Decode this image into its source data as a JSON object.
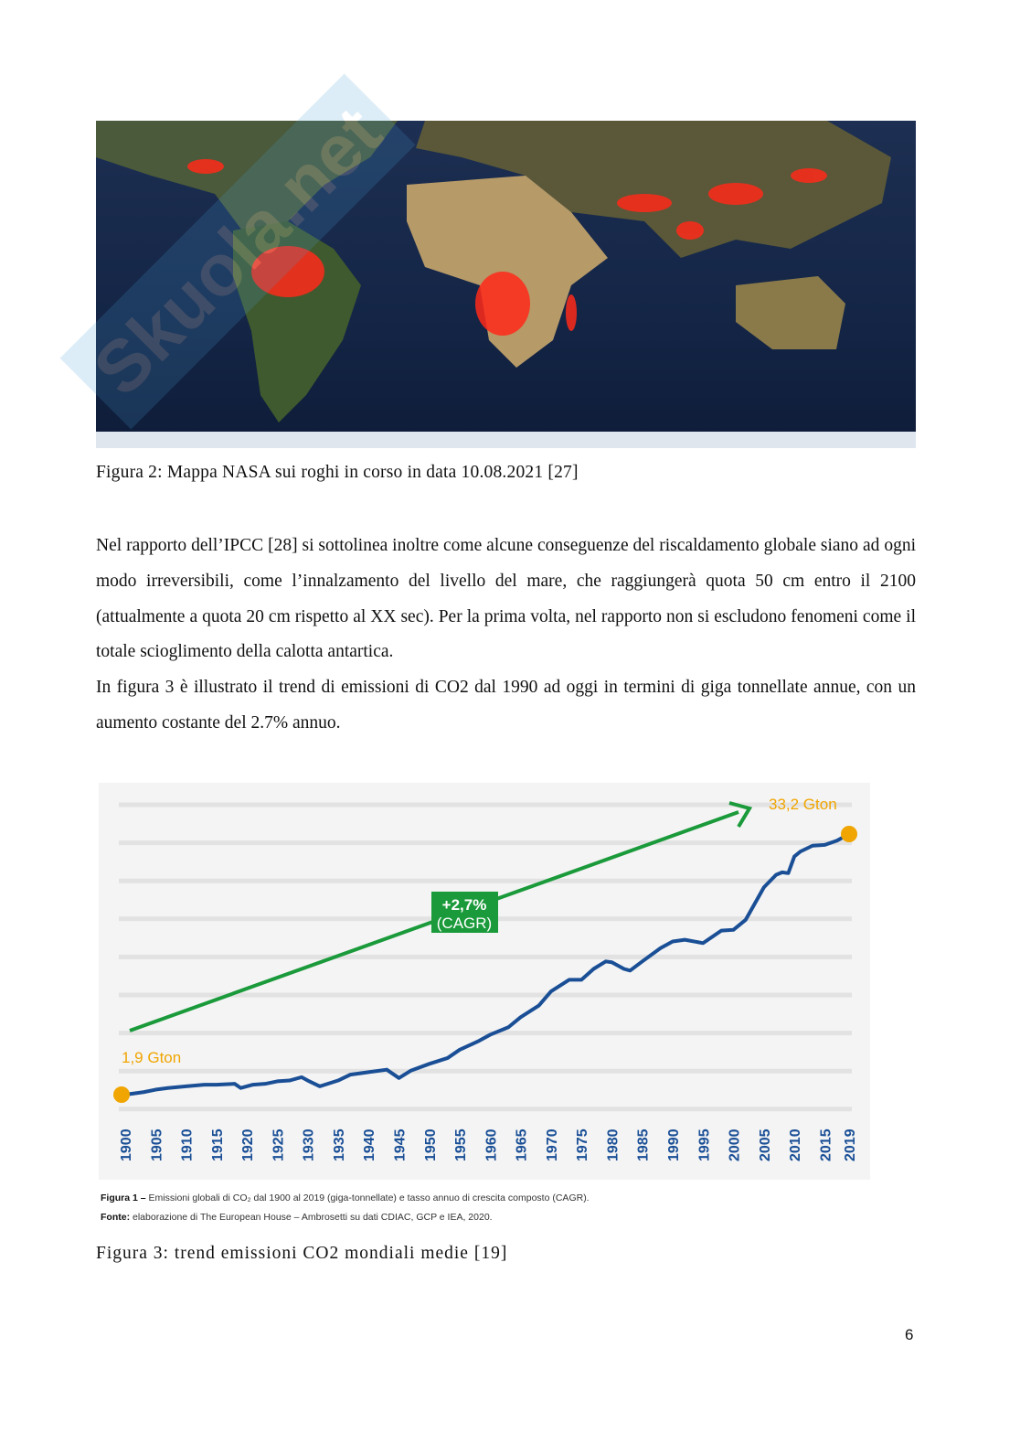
{
  "watermark": "Skuola.net",
  "figure2": {
    "caption": "Figura 2: Mappa NASA sui roghi in corso in data 10.08.2021 [27]"
  },
  "body": {
    "paragraph1": "Nel rapporto dell’IPCC [28] si sottolinea inoltre come alcune conseguenze del riscaldamento globale siano ad ogni modo irreversibili, come l’innalzamento del livello del mare, che raggiungerà quota 50 cm entro il 2100 (attualmente a quota 20 cm rispetto al XX sec). Per la prima volta, nel rapporto non si escludono fenomeni come il totale scioglimento della calotta antartica.",
    "paragraph2": "In figura 3 è illustrato il trend di emissioni di CO2 dal 1990 ad oggi in termini di giga tonnellate annue, con un aumento costante del 2.7% annuo."
  },
  "chart_data": {
    "type": "line",
    "title": "",
    "xlabel": "",
    "ylabel": "",
    "x_ticks": [
      "1900",
      "1905",
      "1910",
      "1915",
      "1920",
      "1925",
      "1930",
      "1935",
      "1940",
      "1945",
      "1950",
      "1955",
      "1960",
      "1965",
      "1970",
      "1975",
      "1980",
      "1985",
      "1990",
      "1995",
      "2000",
      "2005",
      "2010",
      "2015",
      "2019"
    ],
    "xlim": [
      1900,
      2019
    ],
    "ylim": [
      -0.7,
      37
    ],
    "grid": true,
    "series": [
      {
        "name": "Emissioni globali CO2 (Gton)",
        "color": "#1a4f96",
        "x": [
          1900,
          1903,
          1905,
          1907,
          1910,
          1913,
          1915,
          1918,
          1919,
          1921,
          1923,
          1925,
          1927,
          1929,
          1930,
          1932,
          1935,
          1937,
          1940,
          1943,
          1945,
          1947,
          1950,
          1953,
          1955,
          1958,
          1960,
          1963,
          1965,
          1968,
          1970,
          1973,
          1975,
          1977,
          1979,
          1980,
          1982,
          1983,
          1985,
          1988,
          1990,
          1992,
          1995,
          1998,
          2000,
          2002,
          2004,
          2005,
          2007,
          2008,
          2009,
          2010,
          2011,
          2013,
          2015,
          2017,
          2019
        ],
        "y": [
          1.9,
          2.2,
          2.5,
          2.7,
          2.9,
          3.1,
          3.1,
          3.2,
          2.7,
          3.1,
          3.2,
          3.5,
          3.6,
          4.0,
          3.6,
          2.9,
          3.6,
          4.3,
          4.6,
          4.9,
          3.9,
          4.8,
          5.6,
          6.3,
          7.3,
          8.3,
          9.1,
          10.0,
          11.2,
          12.6,
          14.3,
          15.7,
          15.7,
          17.0,
          17.9,
          17.8,
          17.0,
          16.8,
          17.9,
          19.5,
          20.3,
          20.5,
          20.1,
          21.6,
          21.7,
          22.9,
          25.5,
          26.8,
          28.3,
          28.6,
          28.5,
          30.5,
          31.1,
          31.8,
          31.9,
          32.4,
          33.2
        ]
      }
    ],
    "annotations": {
      "start_label": "1,9 Gton",
      "end_label": "33,2 Gton",
      "cagr_value": "+2,7%",
      "cagr_note": "(CAGR)",
      "marker_color": "#f0a500",
      "arrow_color": "#1a9a3a"
    }
  },
  "chart_caption": {
    "figura_label": "Figura 1 –",
    "figura_text": "Emissioni globali di CO₂ dal 1900 al 2019 (giga-tonnellate) e tasso annuo di crescita composto (CAGR).",
    "fonte_label": "Fonte:",
    "fonte_text": "elaborazione di The European House – Ambrosetti su dati CDIAC, GCP e IEA, 2020."
  },
  "figure3": {
    "caption": "Figura 3: trend emissioni CO2 mondiali medie [19]"
  },
  "page_number": "6"
}
